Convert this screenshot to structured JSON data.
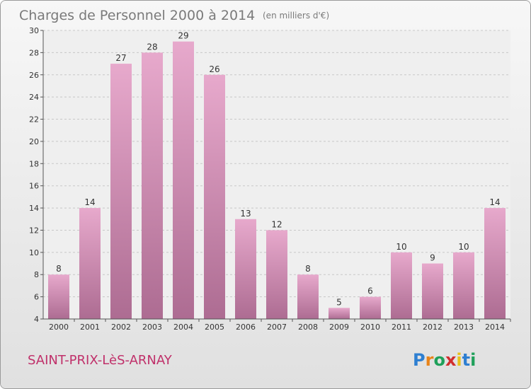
{
  "page": {
    "commune": "SAINT-PRIX-LèS-ARNAY",
    "logo": "Proxiti",
    "logo_letters": [
      {
        "ch": "P",
        "color": "#2e7fd1"
      },
      {
        "ch": "r",
        "color": "#e8841a"
      },
      {
        "ch": "o",
        "color": "#1fa05a"
      },
      {
        "ch": "x",
        "color": "#d12e2e"
      },
      {
        "ch": "i",
        "color": "#e8c11a"
      },
      {
        "ch": "t",
        "color": "#2e7fd1"
      },
      {
        "ch": "i",
        "color": "#1fa05a"
      }
    ]
  },
  "chart_data": {
    "type": "bar",
    "title": "Charges de Personnel 2000 à 2014",
    "subtitle": "(en milliers d'€)",
    "categories": [
      "2000",
      "2001",
      "2002",
      "2003",
      "2004",
      "2005",
      "2006",
      "2007",
      "2008",
      "2009",
      "2010",
      "2011",
      "2012",
      "2013",
      "2014"
    ],
    "values": [
      8,
      14,
      27,
      28,
      29,
      26,
      13,
      12,
      8,
      5,
      6,
      10,
      9,
      10,
      14
    ],
    "ylim": [
      4,
      30
    ],
    "yticks": [
      4,
      6,
      8,
      10,
      12,
      14,
      16,
      18,
      20,
      22,
      24,
      26,
      28,
      30
    ],
    "grid": true,
    "bar_color_top": "#e7a9cc",
    "bar_color_bottom": "#ad6c92"
  }
}
